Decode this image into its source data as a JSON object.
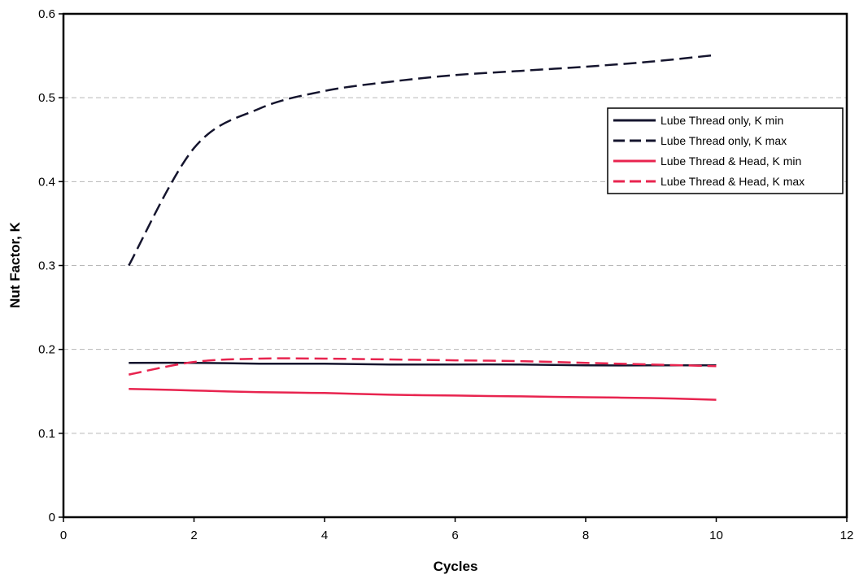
{
  "chart_data": {
    "type": "line",
    "title": "",
    "xlabel": "Cycles",
    "ylabel": "Nut Factor, K",
    "xlim": [
      0,
      12
    ],
    "ylim": [
      0,
      0.6
    ],
    "x_ticks": [
      0,
      2,
      4,
      6,
      8,
      10,
      12
    ],
    "y_ticks": [
      0,
      0.1,
      0.2,
      0.3,
      0.4,
      0.5,
      0.6
    ],
    "x_tick_labels": [
      "0",
      "2",
      "4",
      "6",
      "8",
      "10",
      "12"
    ],
    "y_tick_labels": [
      "0",
      "0.1",
      "0.2",
      "0.3",
      "0.4",
      "0.5",
      "0.6"
    ],
    "grid": "horizontal dashed",
    "legend_position": "top-right",
    "x": [
      1,
      2,
      3,
      4,
      5,
      6,
      7,
      8,
      9,
      10
    ],
    "series": [
      {
        "name": "Lube Thread only, K min",
        "color": "#15152e",
        "dash": "solid",
        "values": [
          0.184,
          0.184,
          0.183,
          0.183,
          0.182,
          0.182,
          0.182,
          0.181,
          0.181,
          0.181
        ]
      },
      {
        "name": "Lube Thread only, K max",
        "color": "#15152e",
        "dash": "dashed",
        "values": [
          0.3,
          0.44,
          0.487,
          0.508,
          0.519,
          0.527,
          0.532,
          0.537,
          0.543,
          0.551
        ]
      },
      {
        "name": "Lube Thread & Head, K min",
        "color": "#e8244f",
        "dash": "solid",
        "values": [
          0.153,
          0.151,
          0.149,
          0.148,
          0.146,
          0.145,
          0.144,
          0.143,
          0.142,
          0.14
        ]
      },
      {
        "name": "Lube Thread & Head, K max",
        "color": "#e8244f",
        "dash": "dashed",
        "values": [
          0.17,
          0.185,
          0.189,
          0.189,
          0.188,
          0.187,
          0.186,
          0.184,
          0.182,
          0.18
        ]
      }
    ]
  }
}
